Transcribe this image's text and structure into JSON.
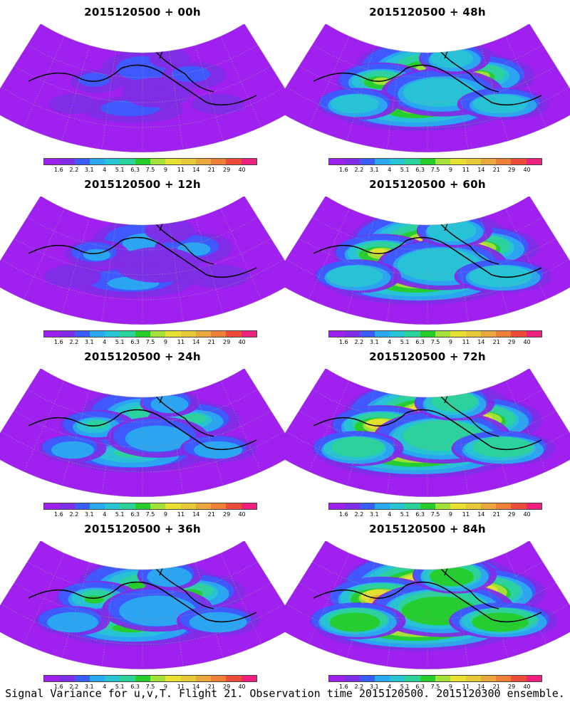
{
  "caption": "Signal Variance for u,v,T. Flight 21. Observation time 2015120500. 2015120300 ensemble.",
  "colorbar": {
    "colors": [
      "#a020f0",
      "#7f2de6",
      "#3b5cff",
      "#2aa9f0",
      "#27c4d4",
      "#2bd39b",
      "#26cc2a",
      "#a6e039",
      "#e6e030",
      "#e8c83a",
      "#e8a63c",
      "#ee8038",
      "#f04a3c",
      "#f0207f"
    ],
    "labels": [
      "1.6",
      "2.2",
      "3.1",
      "4",
      "5.1",
      "6.3",
      "7.5",
      "9",
      "11",
      "14",
      "21",
      "29",
      "40"
    ]
  },
  "panels": [
    {
      "title": "2015120500 + 00h",
      "intensity": 0.15
    },
    {
      "title": "2015120500 + 48h",
      "intensity": 0.62
    },
    {
      "title": "2015120500 + 12h",
      "intensity": 0.28
    },
    {
      "title": "2015120500 + 60h",
      "intensity": 0.7
    },
    {
      "title": "2015120500 + 24h",
      "intensity": 0.4
    },
    {
      "title": "2015120500 + 72h",
      "intensity": 0.78
    },
    {
      "title": "2015120500 + 36h",
      "intensity": 0.5
    },
    {
      "title": "2015120500 + 84h",
      "intensity": 0.85
    }
  ]
}
